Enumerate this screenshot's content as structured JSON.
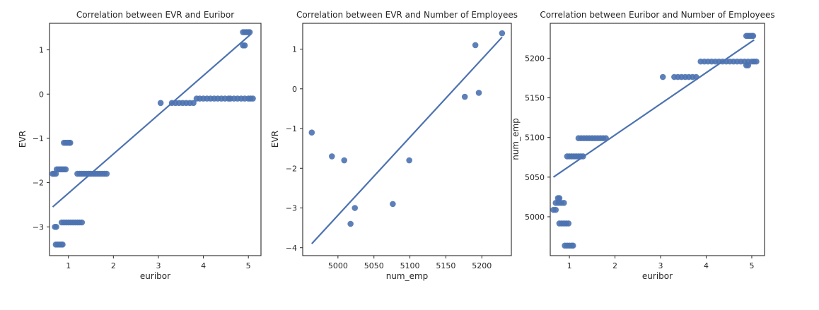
{
  "chart_data": [
    {
      "type": "scatter",
      "title": "Correlation between EVR and Euribor",
      "xlabel": "euribor",
      "ylabel": "EVR",
      "xlim": [
        0.58,
        5.28
      ],
      "ylim": [
        -3.65,
        1.6
      ],
      "xticks": [
        1,
        2,
        3,
        4,
        5
      ],
      "yticks": [
        -3,
        -2,
        -1,
        0,
        1
      ],
      "grid": false,
      "legend": "none",
      "color": "#4c72b0",
      "points": [
        [
          0.65,
          -1.8
        ],
        [
          0.68,
          -1.8
        ],
        [
          0.72,
          -1.8
        ],
        [
          0.7,
          -3.0
        ],
        [
          0.73,
          -3.0
        ],
        [
          0.72,
          -3.4
        ],
        [
          0.76,
          -3.4
        ],
        [
          0.8,
          -3.4
        ],
        [
          0.84,
          -3.4
        ],
        [
          0.87,
          -3.4
        ],
        [
          0.74,
          -1.7
        ],
        [
          0.78,
          -1.7
        ],
        [
          0.82,
          -1.7
        ],
        [
          0.86,
          -1.7
        ],
        [
          0.9,
          -1.7
        ],
        [
          0.94,
          -1.7
        ],
        [
          0.85,
          -2.9
        ],
        [
          0.9,
          -2.9
        ],
        [
          0.95,
          -2.9
        ],
        [
          1.0,
          -2.9
        ],
        [
          1.05,
          -2.9
        ],
        [
          1.1,
          -2.9
        ],
        [
          1.15,
          -2.9
        ],
        [
          1.2,
          -2.9
        ],
        [
          1.25,
          -2.9
        ],
        [
          1.3,
          -2.9
        ],
        [
          0.9,
          -1.1
        ],
        [
          0.94,
          -1.1
        ],
        [
          0.98,
          -1.1
        ],
        [
          1.02,
          -1.1
        ],
        [
          1.04,
          -1.1
        ],
        [
          1.2,
          -1.8
        ],
        [
          1.25,
          -1.8
        ],
        [
          1.3,
          -1.8
        ],
        [
          1.35,
          -1.8
        ],
        [
          1.4,
          -1.8
        ],
        [
          1.45,
          -1.8
        ],
        [
          1.5,
          -1.8
        ],
        [
          1.55,
          -1.8
        ],
        [
          1.6,
          -1.8
        ],
        [
          1.65,
          -1.8
        ],
        [
          1.7,
          -1.8
        ],
        [
          1.75,
          -1.8
        ],
        [
          1.8,
          -1.8
        ],
        [
          1.85,
          -1.8
        ],
        [
          3.05,
          -0.2
        ],
        [
          3.3,
          -0.2
        ],
        [
          3.38,
          -0.2
        ],
        [
          3.46,
          -0.2
        ],
        [
          3.54,
          -0.2
        ],
        [
          3.62,
          -0.2
        ],
        [
          3.7,
          -0.2
        ],
        [
          3.78,
          -0.2
        ],
        [
          3.85,
          -0.1
        ],
        [
          3.92,
          -0.1
        ],
        [
          4.0,
          -0.1
        ],
        [
          4.08,
          -0.1
        ],
        [
          4.16,
          -0.1
        ],
        [
          4.24,
          -0.1
        ],
        [
          4.32,
          -0.1
        ],
        [
          4.4,
          -0.1
        ],
        [
          4.48,
          -0.1
        ],
        [
          4.56,
          -0.1
        ],
        [
          4.6,
          -0.1
        ],
        [
          4.68,
          -0.1
        ],
        [
          4.76,
          -0.1
        ],
        [
          4.84,
          -0.1
        ],
        [
          4.92,
          -0.1
        ],
        [
          5.0,
          -0.1
        ],
        [
          5.05,
          -0.1
        ],
        [
          5.1,
          -0.1
        ],
        [
          4.88,
          1.1
        ],
        [
          4.92,
          1.1
        ],
        [
          4.88,
          1.4
        ],
        [
          4.92,
          1.4
        ],
        [
          4.96,
          1.4
        ],
        [
          5.0,
          1.4
        ],
        [
          5.03,
          1.4
        ]
      ],
      "trendline": [
        [
          0.65,
          -2.55
        ],
        [
          5.05,
          1.35
        ]
      ]
    },
    {
      "type": "scatter",
      "title": "Correlation between EVR and Number of Employees",
      "xlabel": "num_emp",
      "ylabel": "EVR",
      "xlim": [
        4951,
        5241
      ],
      "ylim": [
        -4.2,
        1.65
      ],
      "xticks": [
        5000,
        5050,
        5100,
        5150,
        5200
      ],
      "yticks": [
        -4,
        -3,
        -2,
        -1,
        0,
        1
      ],
      "grid": false,
      "legend": "none",
      "color": "#4c72b0",
      "points": [
        [
          4963.6,
          -1.1
        ],
        [
          4991.6,
          -1.7
        ],
        [
          5008.7,
          -1.8
        ],
        [
          5017.5,
          -3.4
        ],
        [
          5023.5,
          -3.0
        ],
        [
          5076.2,
          -2.9
        ],
        [
          5099.1,
          -1.8
        ],
        [
          5176.3,
          -0.2
        ],
        [
          5191.0,
          1.1
        ],
        [
          5195.8,
          -0.1
        ],
        [
          5228.1,
          1.4
        ]
      ],
      "trendline": [
        [
          4963.6,
          -3.9
        ],
        [
          5228.1,
          1.3
        ]
      ]
    },
    {
      "type": "scatter",
      "title": "Correlation between Euribor and Number of Employees",
      "xlabel": "euribor",
      "ylabel": "num_emp",
      "xlim": [
        0.58,
        5.28
      ],
      "ylim": [
        4951,
        5244
      ],
      "xticks": [
        1,
        2,
        3,
        4,
        5
      ],
      "yticks": [
        5000,
        5050,
        5100,
        5150,
        5200
      ],
      "grid": false,
      "legend": "none",
      "color": "#4c72b0",
      "points": [
        [
          0.65,
          5008.7
        ],
        [
          0.7,
          5008.7
        ],
        [
          0.75,
          5023.5
        ],
        [
          0.78,
          5023.5
        ],
        [
          0.7,
          5017.5
        ],
        [
          0.76,
          5017.5
        ],
        [
          0.82,
          5017.5
        ],
        [
          0.88,
          5017.5
        ],
        [
          0.78,
          4991.6
        ],
        [
          0.83,
          4991.6
        ],
        [
          0.88,
          4991.6
        ],
        [
          0.93,
          4991.6
        ],
        [
          0.98,
          4991.6
        ],
        [
          0.9,
          4963.6
        ],
        [
          0.95,
          4963.6
        ],
        [
          1.0,
          4963.6
        ],
        [
          1.05,
          4963.6
        ],
        [
          1.08,
          4963.6
        ],
        [
          0.95,
          5076.2
        ],
        [
          1.0,
          5076.2
        ],
        [
          1.05,
          5076.2
        ],
        [
          1.1,
          5076.2
        ],
        [
          1.15,
          5076.2
        ],
        [
          1.2,
          5076.2
        ],
        [
          1.25,
          5076.2
        ],
        [
          1.3,
          5076.2
        ],
        [
          1.2,
          5099.1
        ],
        [
          1.26,
          5099.1
        ],
        [
          1.32,
          5099.1
        ],
        [
          1.38,
          5099.1
        ],
        [
          1.44,
          5099.1
        ],
        [
          1.5,
          5099.1
        ],
        [
          1.56,
          5099.1
        ],
        [
          1.62,
          5099.1
        ],
        [
          1.68,
          5099.1
        ],
        [
          1.74,
          5099.1
        ],
        [
          1.8,
          5099.1
        ],
        [
          3.05,
          5176.3
        ],
        [
          3.3,
          5176.3
        ],
        [
          3.38,
          5176.3
        ],
        [
          3.46,
          5176.3
        ],
        [
          3.54,
          5176.3
        ],
        [
          3.62,
          5176.3
        ],
        [
          3.7,
          5176.3
        ],
        [
          3.78,
          5176.3
        ],
        [
          3.88,
          5195.8
        ],
        [
          3.96,
          5195.8
        ],
        [
          4.04,
          5195.8
        ],
        [
          4.12,
          5195.8
        ],
        [
          4.2,
          5195.8
        ],
        [
          4.28,
          5195.8
        ],
        [
          4.36,
          5195.8
        ],
        [
          4.44,
          5195.8
        ],
        [
          4.52,
          5195.8
        ],
        [
          4.6,
          5195.8
        ],
        [
          4.68,
          5195.8
        ],
        [
          4.76,
          5195.8
        ],
        [
          4.84,
          5195.8
        ],
        [
          4.92,
          5195.8
        ],
        [
          5.0,
          5195.8
        ],
        [
          5.05,
          5195.8
        ],
        [
          5.1,
          5195.8
        ],
        [
          4.88,
          5191.0
        ],
        [
          4.92,
          5191.0
        ],
        [
          4.88,
          5228.1
        ],
        [
          4.92,
          5228.1
        ],
        [
          4.96,
          5228.1
        ],
        [
          5.0,
          5228.1
        ],
        [
          5.03,
          5228.1
        ]
      ],
      "trendline": [
        [
          0.65,
          5050
        ],
        [
          5.05,
          5223
        ]
      ]
    }
  ]
}
